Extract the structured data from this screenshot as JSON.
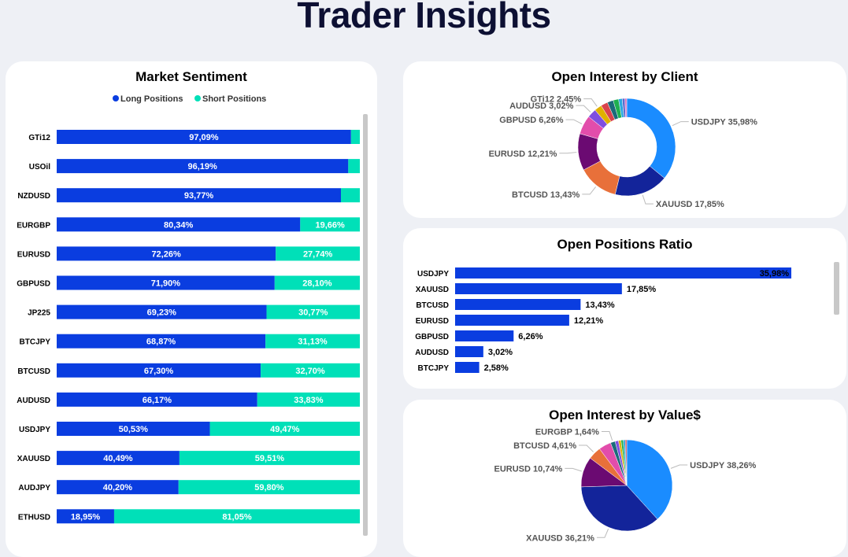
{
  "title": "Trader Insights",
  "chart_data": [
    {
      "type": "bar",
      "stacked": true,
      "orientation": "horizontal",
      "title": "Market Sentiment",
      "legend": [
        {
          "name": "Long Positions",
          "color": "#0a3de0"
        },
        {
          "name": "Short Positions",
          "color": "#00e0b8"
        }
      ],
      "legend_position": "top",
      "categories": [
        "GTi12",
        "USOil",
        "NZDUSD",
        "EURGBP",
        "EURUSD",
        "GBPUSD",
        "JP225",
        "BTCJPY",
        "BTCUSD",
        "AUDUSD",
        "USDJPY",
        "XAUUSD",
        "AUDJPY",
        "ETHUSD"
      ],
      "series": [
        {
          "name": "Long Positions",
          "values": [
            97.09,
            96.19,
            93.77,
            80.34,
            72.26,
            71.9,
            69.23,
            68.87,
            67.3,
            66.17,
            50.53,
            40.49,
            40.2,
            18.95
          ],
          "labels": [
            "97,09%",
            "96,19%",
            "93,77%",
            "80,34%",
            "72,26%",
            "71,90%",
            "69,23%",
            "68,87%",
            "67,30%",
            "66,17%",
            "50,53%",
            "40,49%",
            "40,20%",
            "18,95%"
          ]
        },
        {
          "name": "Short Positions",
          "values": [
            2.91,
            3.81,
            6.23,
            19.66,
            27.74,
            28.1,
            30.77,
            31.13,
            32.7,
            33.83,
            49.47,
            59.51,
            59.8,
            81.05
          ],
          "labels": [
            "",
            "",
            "",
            "19,66%",
            "27,74%",
            "28,10%",
            "30,77%",
            "31,13%",
            "32,70%",
            "33,83%",
            "49,47%",
            "59,51%",
            "59,80%",
            "81,05%"
          ]
        }
      ]
    },
    {
      "type": "pie",
      "donut": true,
      "title": "Open Interest by Client",
      "slices": [
        {
          "name": "USDJPY",
          "value": 35.98,
          "label": "USDJPY 35,98%",
          "color": "#1a8cff"
        },
        {
          "name": "XAUUSD",
          "value": 17.85,
          "label": "XAUUSD 17,85%",
          "color": "#13249a"
        },
        {
          "name": "BTCUSD",
          "value": 13.43,
          "label": "BTCUSD 13,43%",
          "color": "#e8703a"
        },
        {
          "name": "EURUSD",
          "value": 12.21,
          "label": "EURUSD 12,21%",
          "color": "#6b0a72"
        },
        {
          "name": "GBPUSD",
          "value": 6.26,
          "label": "GBPUSD 6,26%",
          "color": "#e24dab"
        },
        {
          "name": "AUDUSD",
          "value": 3.02,
          "label": "AUDUSD 3,02%",
          "color": "#7f4fe0"
        },
        {
          "name": "GTi12",
          "value": 2.45,
          "label": "GTi12 2,45%",
          "color": "#e0b000"
        },
        {
          "name": "",
          "value": 2.3,
          "label": "",
          "color": "#d9434e"
        },
        {
          "name": "",
          "value": 2.0,
          "label": "",
          "color": "#1b6b7a"
        },
        {
          "name": "",
          "value": 1.8,
          "label": "",
          "color": "#1fb050"
        },
        {
          "name": "",
          "value": 1.2,
          "label": "",
          "color": "#2aa8e0"
        },
        {
          "name": "",
          "value": 0.9,
          "label": "",
          "color": "#5a6ad0"
        },
        {
          "name": "",
          "value": 0.6,
          "label": "",
          "color": "#e070c0"
        }
      ]
    },
    {
      "type": "bar",
      "orientation": "horizontal",
      "title": "Open Positions Ratio",
      "color": "#0a3de0",
      "categories": [
        "USDJPY",
        "XAUUSD",
        "BTCUSD",
        "EURUSD",
        "GBPUSD",
        "AUDUSD",
        "BTCJPY"
      ],
      "values": [
        35.98,
        17.85,
        13.43,
        12.21,
        6.26,
        3.02,
        2.58
      ],
      "labels": [
        "35,98%",
        "17,85%",
        "13,43%",
        "12,21%",
        "6,26%",
        "3,02%",
        "2,58%"
      ]
    },
    {
      "type": "pie",
      "donut": false,
      "title": "Open Interest by Value$",
      "slices": [
        {
          "name": "USDJPY",
          "value": 38.26,
          "label": "USDJPY 38,26%",
          "color": "#1a8cff"
        },
        {
          "name": "XAUUSD",
          "value": 36.21,
          "label": "XAUUSD 36,21%",
          "color": "#13249a"
        },
        {
          "name": "EURUSD",
          "value": 10.74,
          "label": "EURUSD 10,74%",
          "color": "#6b0a72"
        },
        {
          "name": "BTCUSD",
          "value": 4.61,
          "label": "BTCUSD 4,61%",
          "color": "#e8703a"
        },
        {
          "name": "",
          "value": 4.4,
          "label": "",
          "color": "#e24dab"
        },
        {
          "name": "EURGBP",
          "value": 1.64,
          "label": "EURGBP 1,64%",
          "color": "#1b6b7a"
        },
        {
          "name": "",
          "value": 1.2,
          "label": "",
          "color": "#7f4fe0"
        },
        {
          "name": "",
          "value": 0.9,
          "label": "",
          "color": "#e0b000"
        },
        {
          "name": "",
          "value": 0.8,
          "label": "",
          "color": "#1fb050"
        },
        {
          "name": "",
          "value": 0.7,
          "label": "",
          "color": "#2aa8e0"
        },
        {
          "name": "",
          "value": 0.53,
          "label": "",
          "color": "#d9434e"
        }
      ]
    }
  ]
}
